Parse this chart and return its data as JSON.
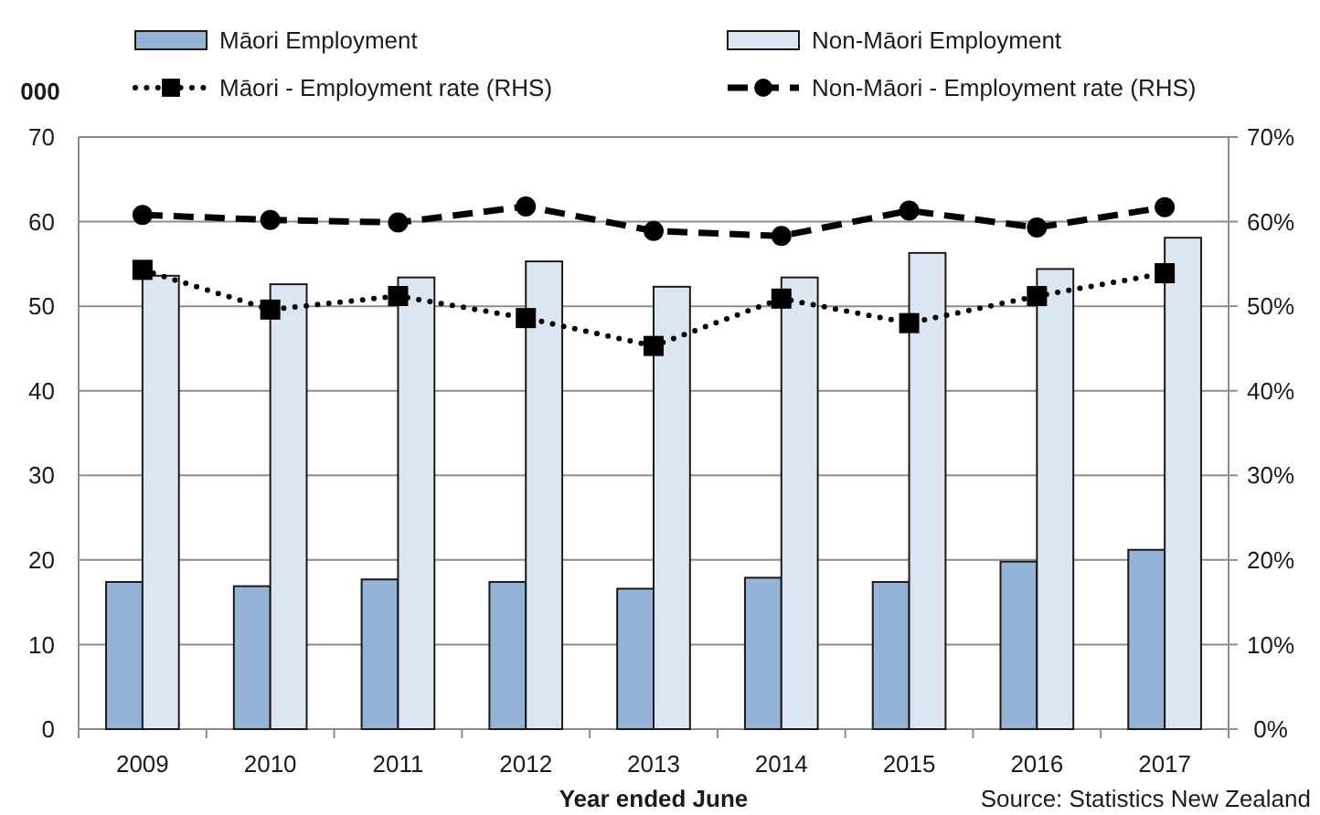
{
  "chart_data": {
    "type": "bar",
    "categories": [
      "2009",
      "2010",
      "2011",
      "2012",
      "2013",
      "2014",
      "2015",
      "2016",
      "2017"
    ],
    "series": [
      {
        "name": "Māori Employment",
        "color": "#95b3d7",
        "values": [
          17.4,
          16.9,
          17.7,
          17.4,
          16.6,
          17.9,
          17.4,
          19.8,
          21.2
        ]
      },
      {
        "name": "Non-Māori Employment",
        "color": "#dce6f2",
        "values": [
          53.6,
          52.6,
          53.4,
          55.3,
          52.3,
          53.4,
          56.3,
          54.4,
          58.1
        ]
      },
      {
        "name": "Māori - Employment rate (RHS)",
        "type": "line",
        "axis": "y2",
        "color": "#000000",
        "marker": "square",
        "line_style": "dotted",
        "values": [
          54.3,
          49.6,
          51.2,
          48.6,
          45.3,
          50.9,
          48.0,
          51.2,
          53.9
        ]
      },
      {
        "name": "Non-Māori - Employment rate (RHS)",
        "type": "line",
        "axis": "y2",
        "color": "#000000",
        "marker": "circle",
        "line_style": "dashed",
        "values": [
          60.8,
          60.2,
          59.9,
          61.8,
          58.9,
          58.3,
          61.3,
          59.3,
          61.7
        ]
      }
    ],
    "ylabel": "000",
    "xlabel": "Year ended June",
    "ylim": [
      0,
      70
    ],
    "yticks": [
      0,
      10,
      20,
      30,
      40,
      50,
      60,
      70
    ],
    "y2lim": [
      0,
      70
    ],
    "y2ticks": [
      {
        "value": 0,
        "label": "0%"
      },
      {
        "value": 10,
        "label": "10%"
      },
      {
        "value": 20,
        "label": "20%"
      },
      {
        "value": 30,
        "label": "30%"
      },
      {
        "value": 40,
        "label": "40%"
      },
      {
        "value": 50,
        "label": "50%"
      },
      {
        "value": 60,
        "label": "60%"
      },
      {
        "value": 70,
        "label": "70%"
      }
    ],
    "grid": "y",
    "legend": "top",
    "annotations": [
      "Source: Statistics New Zealand"
    ]
  }
}
